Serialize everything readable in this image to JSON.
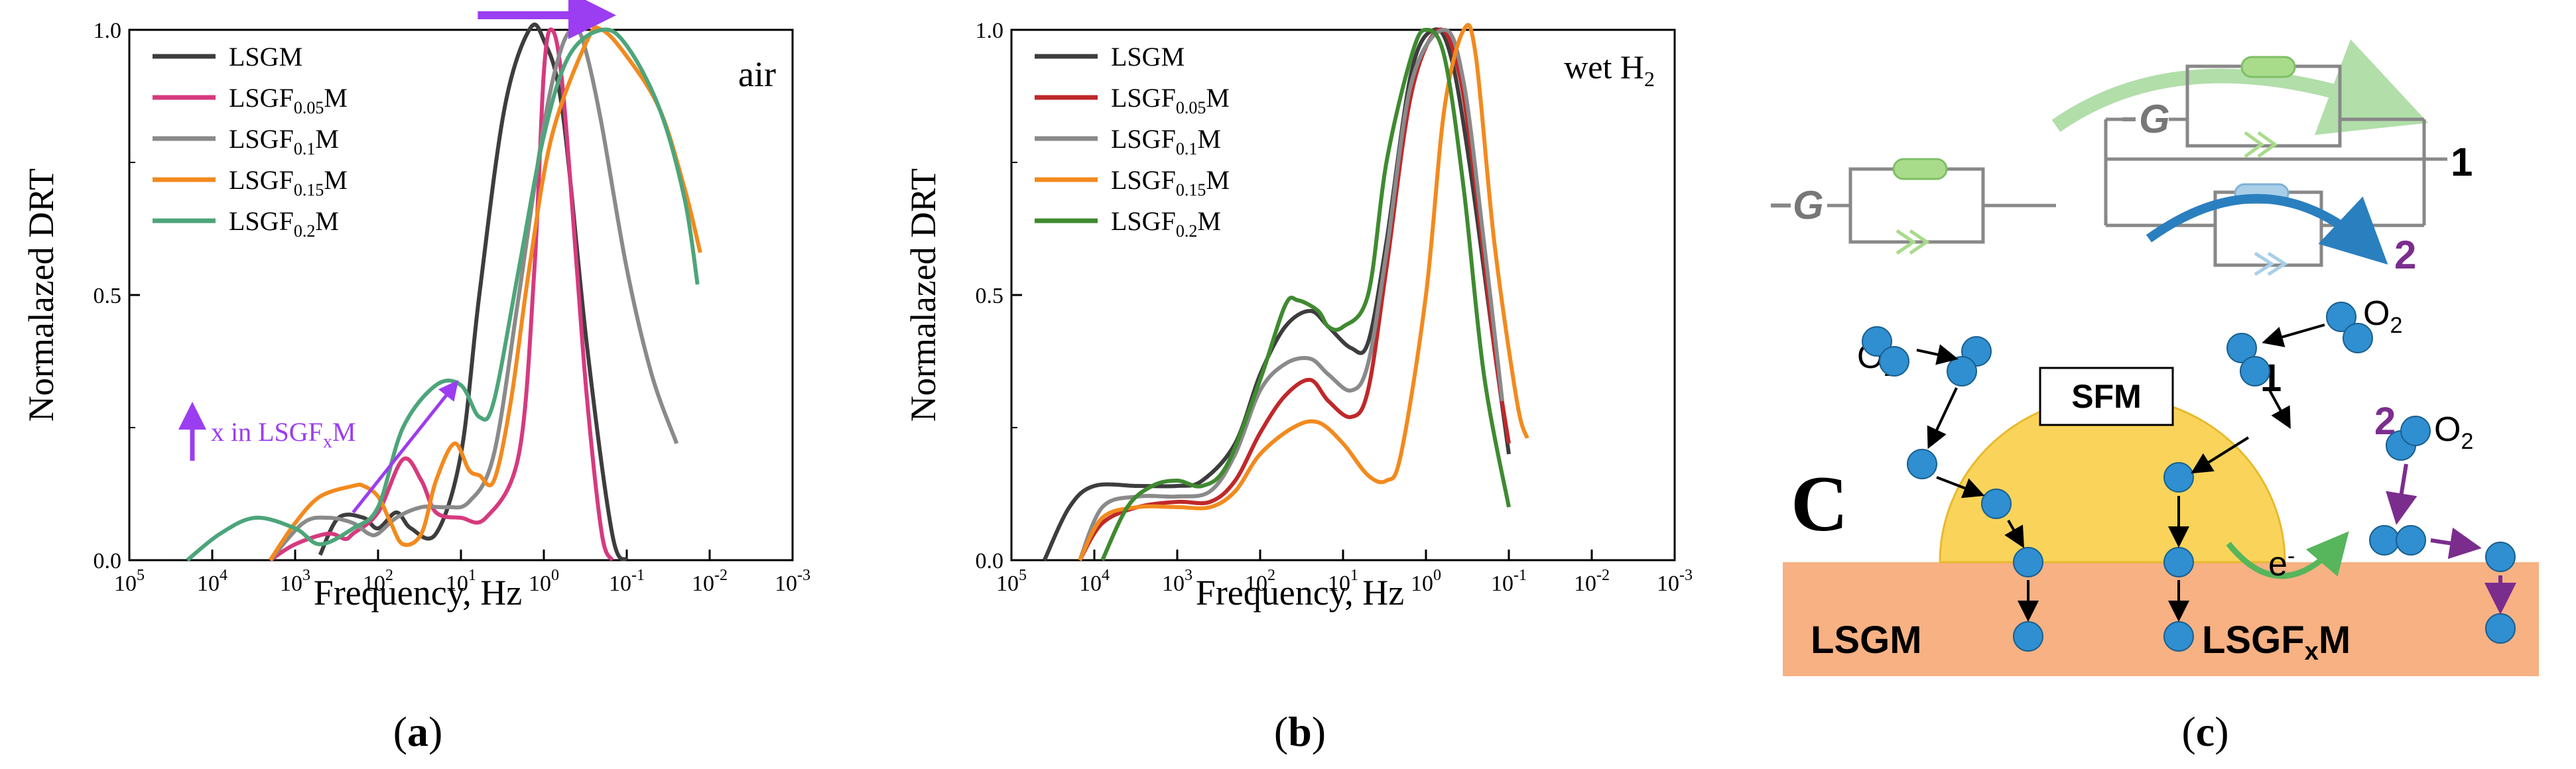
{
  "chart_data": [
    {
      "type": "line",
      "panel": "(a)",
      "condition": "air",
      "xlabel": "Frequency, Hz",
      "ylabel": "Normalazed DRT",
      "x_scale": "log-reversed",
      "xlim": [
        100000,
        0.001
      ],
      "ylim": [
        0,
        1.0
      ],
      "x_ticks": [
        {
          "base": "10",
          "exp": "5",
          "v": 100000
        },
        {
          "base": "10",
          "exp": "4",
          "v": 10000
        },
        {
          "base": "10",
          "exp": "3",
          "v": 1000
        },
        {
          "base": "10",
          "exp": "2",
          "v": 100
        },
        {
          "base": "10",
          "exp": "1",
          "v": 10
        },
        {
          "base": "10",
          "exp": "0",
          "v": 1
        },
        {
          "base": "10",
          "exp": "-1",
          "v": 0.1
        },
        {
          "base": "10",
          "exp": "-2",
          "v": 0.01
        },
        {
          "base": "10",
          "exp": "-3",
          "v": 0.001
        }
      ],
      "y_ticks": [
        {
          "label": "0.0",
          "v": 0
        },
        {
          "label": "0.5",
          "v": 0.5
        },
        {
          "label": "1.0",
          "v": 1.0
        }
      ],
      "annotation_arrow": {
        "from": [
          3,
          1.0
        ],
        "to": [
          0.1,
          1.0
        ]
      },
      "annotation": {
        "prefix": "x in LSGF",
        "sub": "x",
        "suffix": "M"
      },
      "trend_arrow": {
        "from": [
          200,
          0.09
        ],
        "to": [
          12,
          0.33
        ]
      },
      "series": [
        {
          "name": "LSGM",
          "base": "LSGM",
          "sub": "",
          "suffix": "",
          "color": "#3d3d3d",
          "data": [
            [
              500,
              0.01
            ],
            [
              300,
              0.08
            ],
            [
              150,
              0.08
            ],
            [
              100,
              0.06
            ],
            [
              60,
              0.09
            ],
            [
              40,
              0.06
            ],
            [
              20,
              0.05
            ],
            [
              10,
              0.2
            ],
            [
              6,
              0.5
            ],
            [
              3,
              0.85
            ],
            [
              1.5,
              1.0
            ],
            [
              1.0,
              0.98
            ],
            [
              0.6,
              0.85
            ],
            [
              0.3,
              0.4
            ],
            [
              0.15,
              0.05
            ],
            [
              0.1,
              0.0
            ]
          ]
        },
        {
          "name": "LSGF0.05M",
          "base": "LSGF",
          "sub": "0.05",
          "suffix": "M",
          "color": "#d63a7e",
          "data": [
            [
              2000,
              0.0
            ],
            [
              1000,
              0.03
            ],
            [
              400,
              0.05
            ],
            [
              250,
              0.04
            ],
            [
              200,
              0.05
            ],
            [
              100,
              0.09
            ],
            [
              50,
              0.19
            ],
            [
              30,
              0.15
            ],
            [
              20,
              0.09
            ],
            [
              10,
              0.08
            ],
            [
              5,
              0.08
            ],
            [
              2,
              0.2
            ],
            [
              1.3,
              0.55
            ],
            [
              1,
              0.92
            ],
            [
              0.8,
              1.0
            ],
            [
              0.6,
              0.9
            ],
            [
              0.4,
              0.55
            ],
            [
              0.3,
              0.3
            ],
            [
              0.2,
              0.05
            ],
            [
              0.15,
              0.0
            ]
          ]
        },
        {
          "name": "LSGF0.1M",
          "base": "LSGF",
          "sub": "0.1",
          "suffix": "M",
          "color": "#8a8a8a",
          "data": [
            [
              2000,
              0.0
            ],
            [
              800,
              0.07
            ],
            [
              400,
              0.08
            ],
            [
              200,
              0.07
            ],
            [
              130,
              0.05
            ],
            [
              100,
              0.05
            ],
            [
              60,
              0.08
            ],
            [
              30,
              0.1
            ],
            [
              15,
              0.1
            ],
            [
              8,
              0.11
            ],
            [
              4,
              0.2
            ],
            [
              2,
              0.5
            ],
            [
              1,
              0.82
            ],
            [
              0.6,
              0.97
            ],
            [
              0.4,
              1.0
            ],
            [
              0.3,
              0.95
            ],
            [
              0.2,
              0.82
            ],
            [
              0.1,
              0.55
            ],
            [
              0.05,
              0.35
            ],
            [
              0.025,
              0.22
            ]
          ]
        },
        {
          "name": "LSGF0.15M",
          "base": "LSGF",
          "sub": "0.15",
          "suffix": "M",
          "color": "#f28a1e",
          "data": [
            [
              2000,
              0.0
            ],
            [
              1000,
              0.07
            ],
            [
              500,
              0.12
            ],
            [
              200,
              0.14
            ],
            [
              150,
              0.14
            ],
            [
              100,
              0.12
            ],
            [
              70,
              0.07
            ],
            [
              50,
              0.03
            ],
            [
              30,
              0.05
            ],
            [
              20,
              0.15
            ],
            [
              12,
              0.22
            ],
            [
              8,
              0.17
            ],
            [
              6,
              0.16
            ],
            [
              4,
              0.15
            ],
            [
              2.5,
              0.3
            ],
            [
              1.5,
              0.55
            ],
            [
              0.8,
              0.8
            ],
            [
              0.3,
              0.98
            ],
            [
              0.2,
              1.0
            ],
            [
              0.1,
              0.95
            ],
            [
              0.04,
              0.85
            ],
            [
              0.02,
              0.7
            ],
            [
              0.013,
              0.58
            ]
          ]
        },
        {
          "name": "LSGF0.2M",
          "base": "LSGF",
          "sub": "0.2",
          "suffix": "M",
          "color": "#4da57a",
          "data": [
            [
              20000,
              0.0
            ],
            [
              8000,
              0.05
            ],
            [
              3000,
              0.08
            ],
            [
              1000,
              0.06
            ],
            [
              500,
              0.03
            ],
            [
              200,
              0.06
            ],
            [
              100,
              0.1
            ],
            [
              50,
              0.25
            ],
            [
              20,
              0.33
            ],
            [
              10,
              0.33
            ],
            [
              6,
              0.27
            ],
            [
              4,
              0.3
            ],
            [
              2,
              0.55
            ],
            [
              1,
              0.8
            ],
            [
              0.5,
              0.95
            ],
            [
              0.2,
              1.0
            ],
            [
              0.1,
              0.97
            ],
            [
              0.04,
              0.85
            ],
            [
              0.02,
              0.68
            ],
            [
              0.014,
              0.52
            ]
          ]
        }
      ]
    },
    {
      "type": "line",
      "panel": "(b)",
      "condition_base": "wet H",
      "condition_sub": "2",
      "xlabel": "Frequency, Hz",
      "ylabel": "Normalazed DRT",
      "x_scale": "log-reversed",
      "xlim": [
        100000,
        0.001
      ],
      "ylim": [
        0,
        1.0
      ],
      "x_ticks": [
        {
          "base": "10",
          "exp": "5",
          "v": 100000
        },
        {
          "base": "10",
          "exp": "4",
          "v": 10000
        },
        {
          "base": "10",
          "exp": "3",
          "v": 1000
        },
        {
          "base": "10",
          "exp": "2",
          "v": 100
        },
        {
          "base": "10",
          "exp": "1",
          "v": 10
        },
        {
          "base": "10",
          "exp": "0",
          "v": 1
        },
        {
          "base": "10",
          "exp": "-1",
          "v": 0.1
        },
        {
          "base": "10",
          "exp": "-2",
          "v": 0.01
        },
        {
          "base": "10",
          "exp": "-3",
          "v": 0.001
        }
      ],
      "y_ticks": [
        {
          "label": "0.0",
          "v": 0
        },
        {
          "label": "0.5",
          "v": 0.5
        },
        {
          "label": "1.0",
          "v": 1.0
        }
      ],
      "series": [
        {
          "name": "LSGM",
          "base": "LSGM",
          "sub": "",
          "suffix": "",
          "color": "#3d3d3d",
          "data": [
            [
              40000,
              0.0
            ],
            [
              20000,
              0.1
            ],
            [
              10000,
              0.14
            ],
            [
              3000,
              0.14
            ],
            [
              1000,
              0.14
            ],
            [
              500,
              0.15
            ],
            [
              200,
              0.22
            ],
            [
              100,
              0.35
            ],
            [
              50,
              0.44
            ],
            [
              25,
              0.47
            ],
            [
              15,
              0.44
            ],
            [
              8,
              0.4
            ],
            [
              5,
              0.41
            ],
            [
              3,
              0.6
            ],
            [
              1.5,
              0.92
            ],
            [
              0.8,
              1.0
            ],
            [
              0.5,
              0.95
            ],
            [
              0.3,
              0.75
            ],
            [
              0.15,
              0.4
            ],
            [
              0.1,
              0.2
            ]
          ]
        },
        {
          "name": "LSGF0.05M",
          "base": "LSGF",
          "sub": "0.05",
          "suffix": "M",
          "color": "#c0282a",
          "data": [
            [
              15000,
              0.0
            ],
            [
              8000,
              0.07
            ],
            [
              3000,
              0.1
            ],
            [
              1000,
              0.11
            ],
            [
              400,
              0.11
            ],
            [
              200,
              0.15
            ],
            [
              100,
              0.24
            ],
            [
              50,
              0.31
            ],
            [
              25,
              0.34
            ],
            [
              15,
              0.3
            ],
            [
              8,
              0.27
            ],
            [
              5,
              0.32
            ],
            [
              3,
              0.55
            ],
            [
              1.5,
              0.88
            ],
            [
              0.7,
              1.0
            ],
            [
              0.4,
              0.92
            ],
            [
              0.25,
              0.7
            ],
            [
              0.15,
              0.4
            ],
            [
              0.1,
              0.22
            ]
          ]
        },
        {
          "name": "LSGF0.1M",
          "base": "LSGF",
          "sub": "0.1",
          "suffix": "M",
          "color": "#8a8a8a",
          "data": [
            [
              15000,
              0.0
            ],
            [
              8000,
              0.1
            ],
            [
              3000,
              0.12
            ],
            [
              1000,
              0.12
            ],
            [
              400,
              0.13
            ],
            [
              200,
              0.2
            ],
            [
              100,
              0.32
            ],
            [
              50,
              0.37
            ],
            [
              25,
              0.38
            ],
            [
              15,
              0.35
            ],
            [
              8,
              0.32
            ],
            [
              5,
              0.37
            ],
            [
              3,
              0.58
            ],
            [
              1.5,
              0.9
            ],
            [
              0.6,
              1.0
            ],
            [
              0.35,
              0.9
            ],
            [
              0.2,
              0.6
            ],
            [
              0.12,
              0.3
            ]
          ]
        },
        {
          "name": "LSGF0.15M",
          "base": "LSGF",
          "sub": "0.15",
          "suffix": "M",
          "color": "#f28a1e",
          "data": [
            [
              15000,
              0.0
            ],
            [
              8000,
              0.08
            ],
            [
              3000,
              0.1
            ],
            [
              1000,
              0.1
            ],
            [
              400,
              0.1
            ],
            [
              200,
              0.13
            ],
            [
              100,
              0.2
            ],
            [
              40,
              0.25
            ],
            [
              20,
              0.26
            ],
            [
              10,
              0.22
            ],
            [
              5,
              0.16
            ],
            [
              3,
              0.15
            ],
            [
              2,
              0.2
            ],
            [
              1,
              0.5
            ],
            [
              0.6,
              0.85
            ],
            [
              0.35,
              1.0
            ],
            [
              0.25,
              0.95
            ],
            [
              0.15,
              0.6
            ],
            [
              0.08,
              0.3
            ],
            [
              0.06,
              0.23
            ]
          ]
        },
        {
          "name": "LSGF0.2M",
          "base": "LSGF",
          "sub": "0.2",
          "suffix": "M",
          "color": "#3f8a30",
          "data": [
            [
              8000,
              0.0
            ],
            [
              4000,
              0.1
            ],
            [
              2000,
              0.14
            ],
            [
              1000,
              0.15
            ],
            [
              500,
              0.14
            ],
            [
              250,
              0.18
            ],
            [
              100,
              0.34
            ],
            [
              50,
              0.48
            ],
            [
              35,
              0.49
            ],
            [
              20,
              0.47
            ],
            [
              15,
              0.44
            ],
            [
              10,
              0.44
            ],
            [
              5,
              0.5
            ],
            [
              3,
              0.75
            ],
            [
              1.5,
              0.95
            ],
            [
              1,
              1.0
            ],
            [
              0.6,
              0.95
            ],
            [
              0.35,
              0.7
            ],
            [
              0.2,
              0.35
            ],
            [
              0.1,
              0.1
            ]
          ]
        }
      ]
    }
  ],
  "panel_c": {
    "label": "C",
    "sfm": "SFM",
    "o2_base": "O",
    "o2_sub": "2",
    "path1": "1",
    "path2": "2",
    "g_symbol": "G",
    "electron_base": "e",
    "electron_sup": "-",
    "lsgm": "LSGM",
    "lsgfxm_prefix": "LSGF",
    "lsgfxm_sub": "x",
    "lsgfxm_suffix": "M",
    "colors": {
      "substrate": "#f7b183",
      "particle": "#fad45a",
      "ion": "#2f8fd0",
      "purple": "#7b2d8e",
      "green": "#57b55b",
      "teal": "#2a7fbf"
    }
  },
  "captions": {
    "a": "a",
    "b": "b",
    "c": "c"
  }
}
